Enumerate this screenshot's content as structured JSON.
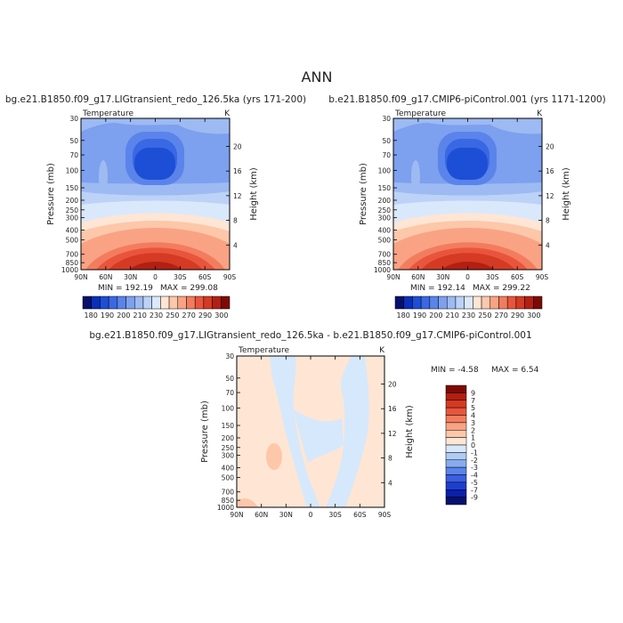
{
  "page_title": "ANN",
  "chart_data": [
    {
      "type": "heatmap",
      "title": "bg.e21.B1850.f09_g17.LIGtransient_redo_126.5ka (yrs 171-200)",
      "variable": "Temperature",
      "units": "K",
      "xlabel": "",
      "ylabel": "Pressure (mb)",
      "y2label": "Height (km)",
      "x_ticks": [
        "90N",
        "60N",
        "30N",
        "0",
        "30S",
        "60S",
        "90S"
      ],
      "y_ticks": [
        30,
        50,
        70,
        100,
        150,
        200,
        250,
        300,
        400,
        500,
        700,
        850,
        1000
      ],
      "height_ticks": [
        4,
        8,
        12,
        16,
        20
      ],
      "min_label": "MIN = 192.19",
      "max_label": "MAX = 299.08",
      "min": 192.19,
      "max": 299.08
    },
    {
      "type": "heatmap",
      "title": "b.e21.B1850.f09_g17.CMIP6-piControl.001 (yrs 1171-1200)",
      "variable": "Temperature",
      "units": "K",
      "xlabel": "",
      "ylabel": "Pressure (mb)",
      "y2label": "Height (km)",
      "x_ticks": [
        "90N",
        "60N",
        "30N",
        "0",
        "30S",
        "60S",
        "90S"
      ],
      "y_ticks": [
        30,
        50,
        70,
        100,
        150,
        200,
        250,
        300,
        400,
        500,
        700,
        850,
        1000
      ],
      "height_ticks": [
        4,
        8,
        12,
        16,
        20
      ],
      "min_label": "MIN = 192.14",
      "max_label": "MAX = 299.22",
      "min": 192.14,
      "max": 299.22
    },
    {
      "type": "heatmap",
      "title": "bg.e21.B1850.f09_g17.LIGtransient_redo_126.5ka - b.e21.B1850.f09_g17.CMIP6-piControl.001",
      "variable": "Temperature",
      "units": "K",
      "xlabel": "",
      "ylabel": "Pressure (mb)",
      "y2label": "Height (km)",
      "x_ticks": [
        "90N",
        "60N",
        "30N",
        "0",
        "30S",
        "60S",
        "90S"
      ],
      "y_ticks": [
        30,
        50,
        70,
        100,
        150,
        200,
        250,
        300,
        400,
        500,
        700,
        850,
        1000
      ],
      "height_ticks": [
        4,
        8,
        12,
        16,
        20
      ],
      "min_label": "MIN =  -4.58",
      "max_label": "MAX =   6.54",
      "min": -4.58,
      "max": 6.54
    }
  ],
  "colorbar_abs": {
    "labels": [
      "180",
      "190",
      "200",
      "210",
      "230",
      "250",
      "270",
      "290",
      "300"
    ],
    "colors": [
      "#08106f",
      "#0a2fb8",
      "#1d4fd6",
      "#3a68e4",
      "#5a84ea",
      "#7da0ef",
      "#9dbaf2",
      "#bcd2f7",
      "#dae8fb",
      "#ffe6d4",
      "#fdc7aa",
      "#f9a384",
      "#f37c5e",
      "#e9553c",
      "#d43a24",
      "#b22012",
      "#7e0a06"
    ]
  },
  "colorbar_diff": {
    "labels": [
      "9",
      "7",
      "5",
      "4",
      "3",
      "2",
      "1",
      "0",
      "-1",
      "-2",
      "-3",
      "-4",
      "-5",
      "-7",
      "-9"
    ],
    "colors": [
      "#7e0a06",
      "#b22012",
      "#d43a24",
      "#e9553c",
      "#f37c5e",
      "#f9a384",
      "#fdc7aa",
      "#ffe6d4",
      "#d6e8fb",
      "#b0cbf5",
      "#88aaef",
      "#5a84ea",
      "#3a5fe0",
      "#1d3fd0",
      "#0a20a8",
      "#08106f"
    ]
  }
}
